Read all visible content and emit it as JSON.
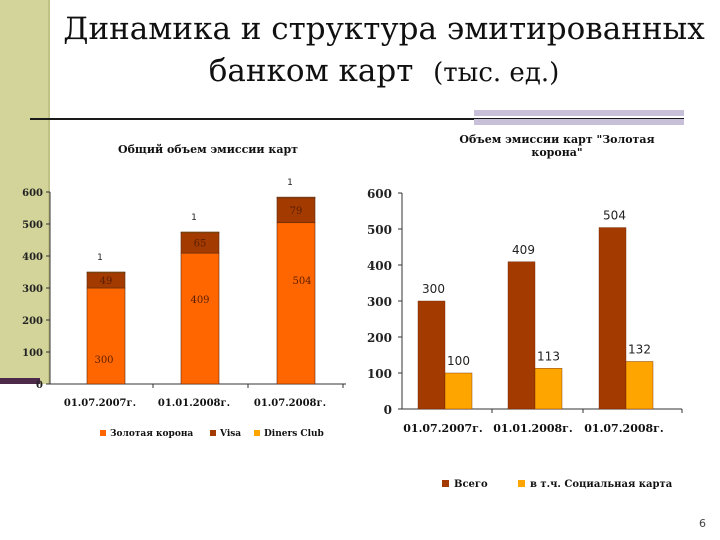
{
  "page": {
    "title_main_line1": "Динамика и структура эмитированных",
    "title_main_line2": "банком карт",
    "title_unit": "(тыс. ед.)",
    "page_number": "6"
  },
  "chart_data": [
    {
      "type": "bar",
      "stacked": true,
      "title": "Общий объем эмиссии карт",
      "categories": [
        "01.07.2007г.",
        "01.01.2008г.",
        "01.07.2008г."
      ],
      "series": [
        {
          "name": "Золотая корона",
          "values": [
            300,
            409,
            504
          ],
          "color": "#ff6600"
        },
        {
          "name": "Visa",
          "values": [
            49,
            65,
            79
          ],
          "color": "#a33a00"
        },
        {
          "name": "Diners Club",
          "values": [
            1,
            1,
            1
          ],
          "color": "#ffa500"
        }
      ],
      "ylim": [
        0,
        600
      ],
      "yticks": [
        0,
        100,
        200,
        300,
        400,
        500,
        600
      ],
      "legend_position": "bottom"
    },
    {
      "type": "bar",
      "title": "Объем эмиссии карт \"Золотая корона\"",
      "categories": [
        "01.07.2007г.",
        "01.01.2008г.",
        "01.07.2008г."
      ],
      "series": [
        {
          "name": "Всего",
          "values": [
            300,
            409,
            504
          ],
          "color": "#a33a00"
        },
        {
          "name": "в т.ч. Социальная карта",
          "values": [
            100,
            113,
            132
          ],
          "color": "#ffa500"
        }
      ],
      "ylim": [
        0,
        600
      ],
      "yticks": [
        0,
        100,
        200,
        300,
        400,
        500,
        600
      ],
      "legend_position": "bottom"
    }
  ]
}
